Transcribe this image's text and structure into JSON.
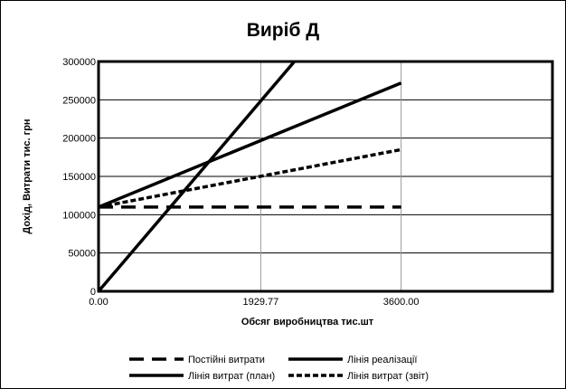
{
  "chart_data": {
    "type": "line",
    "title": "Виріб Д",
    "xlabel": "Обсяг виробництва тис.шт",
    "ylabel": "Дохід, Витрати тис. грн",
    "xlim": [
      0,
      5400
    ],
    "ylim": [
      0,
      300000
    ],
    "x_ticks": [
      0,
      1929.77,
      3600
    ],
    "x_tick_labels": [
      "0.00",
      "1929.77",
      "3600.00"
    ],
    "y_ticks": [
      0,
      50000,
      100000,
      150000,
      200000,
      250000,
      300000
    ],
    "y_tick_labels": [
      "0",
      "50000",
      "100000",
      "150000",
      "200000",
      "250000",
      "300000"
    ],
    "grid": true,
    "legend_position": "bottom",
    "series": [
      {
        "name": "Постійні витрати",
        "style": "dashed",
        "color": "#000000",
        "x": [
          0,
          3600
        ],
        "y": [
          110000,
          110000
        ]
      },
      {
        "name": "Лінія реалізації",
        "style": "solid",
        "color": "#000000",
        "x": [
          0,
          2330
        ],
        "y": [
          0,
          300000
        ]
      },
      {
        "name": "Лінія витрат (план)",
        "style": "solid",
        "color": "#000000",
        "x": [
          0,
          3600
        ],
        "y": [
          110000,
          272000
        ]
      },
      {
        "name": "Лінія витрат (звіт)",
        "style": "dotted",
        "color": "#000000",
        "x": [
          0,
          3600
        ],
        "y": [
          110000,
          185000
        ]
      }
    ]
  }
}
